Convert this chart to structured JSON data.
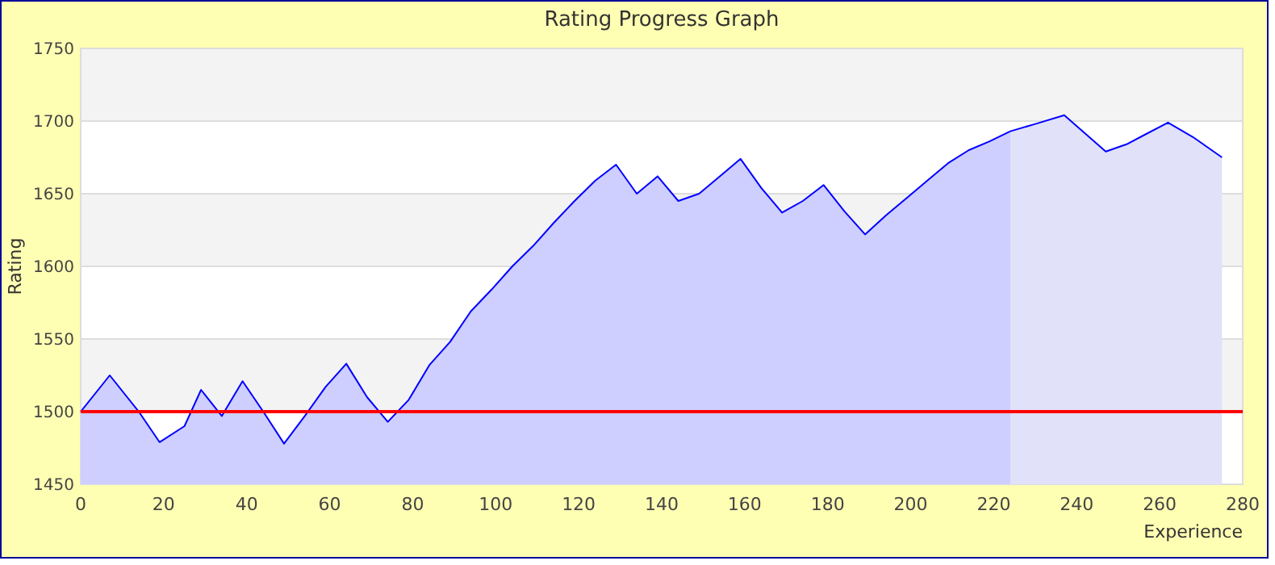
{
  "chart_data": {
    "type": "area",
    "title": "Rating Progress Graph",
    "xlabel": "Experience",
    "ylabel": "Rating",
    "xlim": [
      0,
      280
    ],
    "xticks": [
      0,
      20,
      40,
      60,
      80,
      100,
      120,
      140,
      160,
      180,
      200,
      220,
      240,
      260,
      280
    ],
    "ylim": [
      1450,
      1750
    ],
    "yticks": [
      1450,
      1500,
      1550,
      1600,
      1650,
      1700,
      1750
    ],
    "grid": "y",
    "ref_lines": [
      {
        "axis": "y",
        "value": 1500,
        "color": "#ff0000"
      }
    ],
    "series": [
      {
        "color": "#ceceff",
        "x": [
          0,
          7,
          14,
          19,
          25,
          29,
          34,
          39,
          44,
          49,
          54,
          59,
          64,
          69,
          74,
          79,
          84,
          89,
          94,
          99,
          104,
          109,
          114,
          119,
          124,
          129,
          134,
          139,
          144,
          149,
          154,
          159,
          164,
          169,
          174,
          179,
          184,
          189,
          194,
          199,
          204,
          209,
          214,
          219,
          224
        ],
        "values": [
          1500,
          1525,
          1500,
          1479,
          1490,
          1515,
          1497,
          1521,
          1500,
          1478,
          1497,
          1517,
          1533,
          1510,
          1493,
          1508,
          1532,
          1548,
          1569,
          1584,
          1600,
          1614,
          1630,
          1645,
          1659,
          1670,
          1650,
          1662,
          1645,
          1650,
          1662,
          1674,
          1654,
          1637,
          1645,
          1656,
          1638,
          1622,
          1635,
          1647,
          1659,
          1671,
          1680,
          1686,
          1693
        ]
      },
      {
        "color": "#e1e1fa",
        "x": [
          224,
          230,
          237,
          247,
          252,
          256,
          262,
          268,
          275
        ],
        "values": [
          1693,
          1698,
          1704,
          1679,
          1684,
          1690,
          1699,
          1689,
          1675
        ]
      },
      {
        "type": "line",
        "color": "#0000ff",
        "x": [
          0,
          7,
          14,
          19,
          25,
          29,
          34,
          39,
          44,
          49,
          54,
          59,
          64,
          69,
          74,
          79,
          84,
          89,
          94,
          99,
          104,
          109,
          114,
          119,
          124,
          129,
          134,
          139,
          144,
          149,
          154,
          159,
          164,
          169,
          174,
          179,
          184,
          189,
          194,
          199,
          204,
          209,
          214,
          219,
          224,
          230,
          237,
          247,
          252,
          256,
          262,
          268,
          275
        ],
        "values": [
          1500,
          1525,
          1500,
          1479,
          1490,
          1515,
          1497,
          1521,
          1500,
          1478,
          1497,
          1517,
          1533,
          1510,
          1493,
          1508,
          1532,
          1548,
          1569,
          1584,
          1600,
          1614,
          1630,
          1645,
          1659,
          1670,
          1650,
          1662,
          1645,
          1650,
          1662,
          1674,
          1654,
          1637,
          1645,
          1656,
          1638,
          1622,
          1635,
          1647,
          1659,
          1671,
          1680,
          1686,
          1693,
          1698,
          1704,
          1679,
          1684,
          1690,
          1699,
          1689,
          1675
        ]
      }
    ]
  }
}
